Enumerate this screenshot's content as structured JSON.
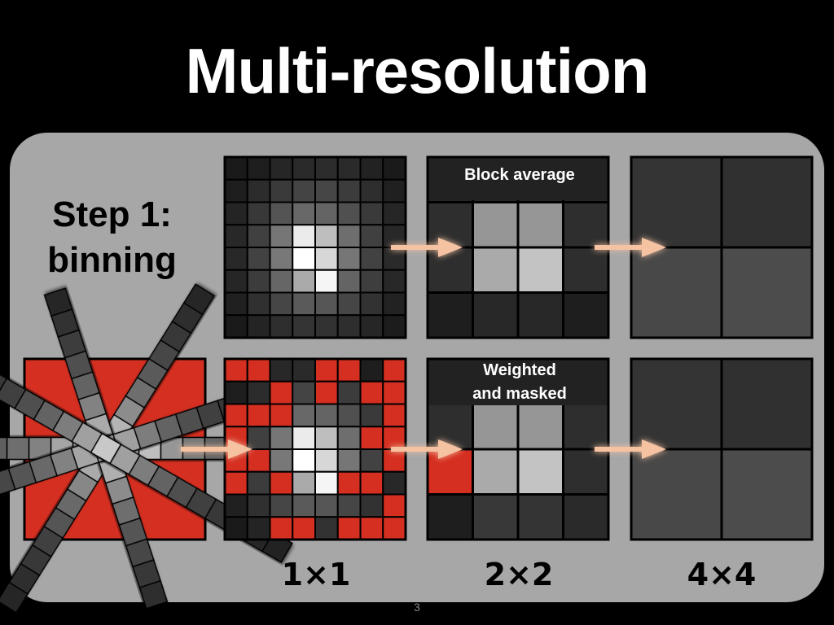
{
  "title": "Multi-resolution",
  "step": {
    "line1": "Step 1:",
    "line2": "binning"
  },
  "labels": {
    "block_average": "Block average",
    "weighted_line1": "Weighted",
    "weighted_line2": "and masked"
  },
  "scales": [
    "1×1",
    "2×2",
    "4×4"
  ],
  "page_number": "3",
  "colors": {
    "mask": "#d42f21",
    "panel": "#a7a7a7",
    "arrow": "#f5c3a2"
  },
  "grids": {
    "fine_gray": [
      [
        26,
        30,
        38,
        42,
        44,
        42,
        34,
        26
      ],
      [
        30,
        44,
        58,
        68,
        70,
        60,
        46,
        32
      ],
      [
        36,
        56,
        84,
        104,
        100,
        80,
        58,
        38
      ],
      [
        40,
        64,
        118,
        235,
        190,
        110,
        64,
        40
      ],
      [
        40,
        66,
        120,
        255,
        215,
        118,
        66,
        42
      ],
      [
        38,
        60,
        102,
        170,
        245,
        100,
        62,
        40
      ],
      [
        32,
        48,
        70,
        90,
        86,
        70,
        50,
        34
      ],
      [
        26,
        36,
        46,
        52,
        50,
        46,
        38,
        28
      ]
    ],
    "fine_masked": [
      [
        -1,
        -1,
        40,
        42,
        -1,
        -1,
        30,
        -1
      ],
      [
        30,
        44,
        -1,
        68,
        -1,
        60,
        -1,
        -1
      ],
      [
        -1,
        -1,
        -1,
        104,
        100,
        80,
        58,
        -1
      ],
      [
        -1,
        64,
        118,
        235,
        190,
        110,
        -1,
        -1
      ],
      [
        -1,
        -1,
        120,
        255,
        215,
        118,
        66,
        -1
      ],
      [
        -1,
        60,
        -1,
        170,
        245,
        -1,
        -1,
        40
      ],
      [
        32,
        48,
        70,
        90,
        86,
        70,
        50,
        -1
      ],
      [
        26,
        36,
        -1,
        -1,
        50,
        -1,
        -1,
        -1
      ]
    ],
    "block_average": [
      [
        38,
        38,
        38,
        38
      ],
      [
        46,
        150,
        150,
        46
      ],
      [
        46,
        170,
        195,
        46
      ],
      [
        30,
        40,
        40,
        30
      ]
    ],
    "block_masked": [
      [
        38,
        38,
        38,
        38
      ],
      [
        46,
        150,
        150,
        46
      ],
      [
        -1,
        170,
        195,
        46
      ],
      [
        30,
        56,
        52,
        42
      ]
    ],
    "coarse_top": [
      [
        52,
        48
      ],
      [
        72,
        76
      ]
    ],
    "coarse_bottom": [
      [
        52,
        48
      ],
      [
        72,
        76
      ]
    ]
  },
  "spokes": {
    "cells": [
      {
        "angle": 0,
        "values": [
          255,
          230,
          190,
          150,
          120,
          100,
          90,
          80,
          70,
          60,
          50
        ]
      },
      {
        "angle": 180,
        "values": [
          240,
          200,
          165,
          130,
          110,
          95,
          80,
          70,
          60,
          50,
          45
        ]
      },
      {
        "angle": -58,
        "values": [
          230,
          180,
          140,
          110,
          90,
          70,
          55,
          45,
          40
        ]
      },
      {
        "angle": 122,
        "values": [
          220,
          170,
          135,
          105,
          85,
          65,
          55,
          45,
          38
        ]
      },
      {
        "angle": -108,
        "values": [
          215,
          170,
          130,
          100,
          80,
          60,
          50,
          40
        ]
      },
      {
        "angle": 72,
        "values": [
          225,
          175,
          140,
          110,
          85,
          70,
          55,
          45
        ]
      },
      {
        "angle": -18,
        "values": [
          200,
          160,
          125,
          100,
          80,
          65,
          55,
          45,
          40,
          35
        ]
      },
      {
        "angle": 162,
        "values": [
          210,
          165,
          130,
          105,
          85,
          70,
          55,
          45,
          40,
          35
        ]
      },
      {
        "angle": 30,
        "values": [
          205,
          160,
          125,
          100,
          80,
          65,
          55,
          45,
          40,
          35
        ]
      },
      {
        "angle": 210,
        "values": [
          200,
          160,
          125,
          100,
          80,
          65,
          55,
          45,
          40
        ]
      }
    ]
  }
}
